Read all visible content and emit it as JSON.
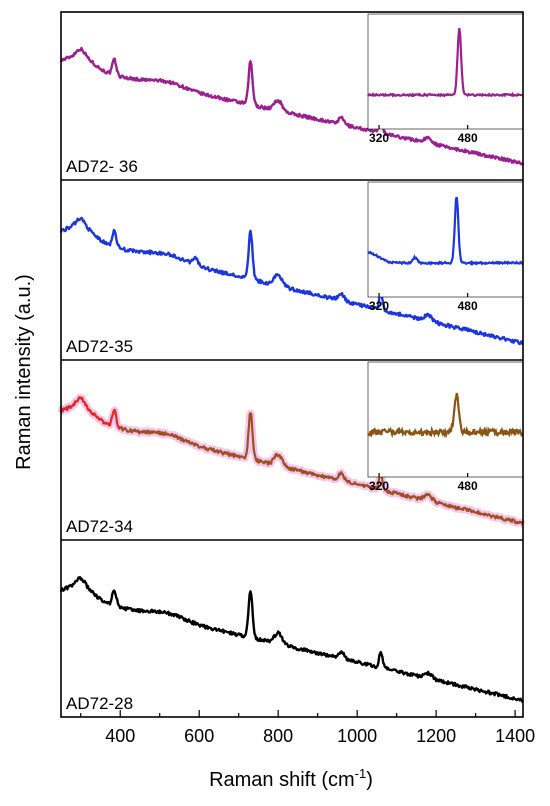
{
  "chart_data": {
    "type": "line",
    "xlabel": "Raman shift (cm",
    "xlabel_sup": "-1",
    "xlabel_close": ")",
    "ylabel": "Raman intensity (a.u.)",
    "xlim": [
      250,
      1420
    ],
    "x_ticks": [
      400,
      600,
      800,
      1000,
      1200,
      1400
    ],
    "x_tick_labels": [
      "400",
      "600",
      "800",
      "1000",
      "1200",
      "1400"
    ],
    "panels": [
      {
        "label": "AD72- 36",
        "color": "#9b1f8e",
        "peaks_cm1": [
          300,
          385,
          730,
          800,
          960,
          1060,
          1180
        ],
        "inset": {
          "xlim": [
            300,
            580
          ],
          "tick_labels": [
            "320",
            "480"
          ],
          "tick_values": [
            320,
            480
          ],
          "color": "#9b1f8e",
          "peak_cm1": 465
        }
      },
      {
        "label": "AD72-35",
        "color": "#1b35e0",
        "peaks_cm1": [
          300,
          385,
          590,
          730,
          800,
          960,
          1060,
          1180
        ],
        "inset": {
          "xlim": [
            300,
            580
          ],
          "tick_labels": [
            "320",
            "480"
          ],
          "tick_values": [
            320,
            480
          ],
          "color": "#1b35e0",
          "peak_cm1": 460
        }
      },
      {
        "label": "AD72-34",
        "color": "#a0501e",
        "start_color": "#e8261a",
        "peaks_cm1": [
          300,
          385,
          730,
          800,
          960,
          1060,
          1180
        ],
        "inset": {
          "xlim": [
            300,
            580
          ],
          "tick_labels": [
            "320",
            "480"
          ],
          "tick_values": [
            320,
            480
          ],
          "color": "#8a5412",
          "peak_cm1": 460
        }
      },
      {
        "label": "AD72-28",
        "color": "#000000",
        "peaks_cm1": [
          300,
          385,
          730,
          800,
          960,
          1060,
          1180
        ]
      }
    ]
  }
}
